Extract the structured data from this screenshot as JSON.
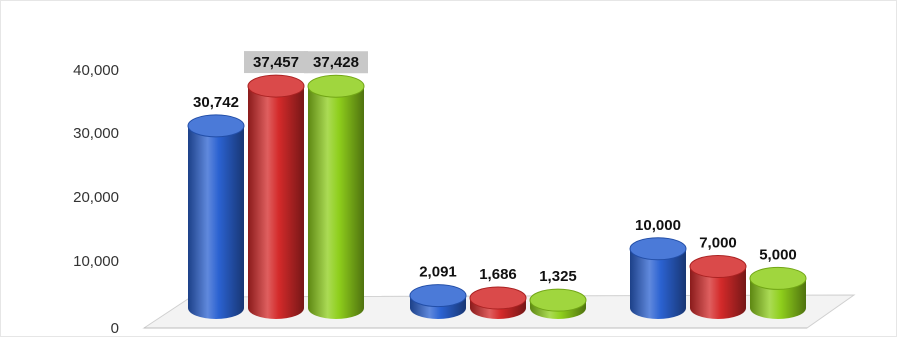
{
  "chart_data": {
    "type": "bar",
    "style": "3d-cylinder",
    "categories": [
      "",
      "",
      ""
    ],
    "series": [
      {
        "color": "#2b62d1",
        "values": [
          30742,
          2091,
          10000
        ],
        "labels": [
          "30,742",
          "2,091",
          "10,000"
        ]
      },
      {
        "color": "#d42a2a",
        "values": [
          37457,
          1686,
          7000
        ],
        "labels": [
          "37,457",
          "1,686",
          "7,000"
        ]
      },
      {
        "color": "#8fcf1c",
        "values": [
          37428,
          1325,
          5000
        ],
        "labels": [
          "37,428",
          "1,325",
          "5,000"
        ]
      }
    ],
    "yticks": [
      "0",
      "10,000",
      "20,000",
      "30,000",
      "40,000"
    ],
    "ylim": [
      0,
      40000
    ],
    "grid": false,
    "legend": "none",
    "title": "",
    "xlabel": "",
    "ylabel": "",
    "highlighted_labels": [
      "37,457",
      "37,428"
    ]
  }
}
